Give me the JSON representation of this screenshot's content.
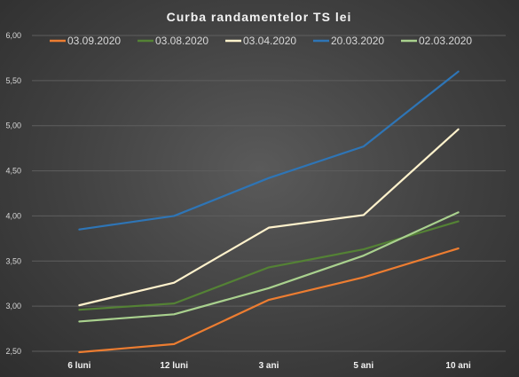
{
  "chart_data": {
    "type": "line",
    "title": "Curba randamentelor  TS lei",
    "categories": [
      "6 luni",
      "12 luni",
      "3 ani",
      "5 ani",
      "10 ani"
    ],
    "ylim": [
      2.5,
      6.0
    ],
    "yticks": [
      "2,50",
      "3,00",
      "3,50",
      "4,00",
      "4,50",
      "5,00",
      "5,50",
      "6,00"
    ],
    "grid": true,
    "legend_position": "top",
    "series": [
      {
        "name": "03.09.2020",
        "color": "#ED7D31",
        "values": [
          2.49,
          2.58,
          3.07,
          3.32,
          3.64
        ]
      },
      {
        "name": "03.08.2020",
        "color": "#548235",
        "values": [
          2.96,
          3.03,
          3.43,
          3.63,
          3.94
        ]
      },
      {
        "name": "03.04.2020",
        "color": "#FFF2CC",
        "values": [
          3.01,
          3.26,
          3.87,
          4.01,
          4.96
        ]
      },
      {
        "name": "20.03.2020",
        "color": "#2E75B6",
        "values": [
          3.85,
          4.0,
          4.42,
          4.77,
          5.6
        ]
      },
      {
        "name": "02.03.2020",
        "color": "#A9D18E",
        "values": [
          2.83,
          2.91,
          3.2,
          3.56,
          4.04
        ]
      }
    ]
  }
}
